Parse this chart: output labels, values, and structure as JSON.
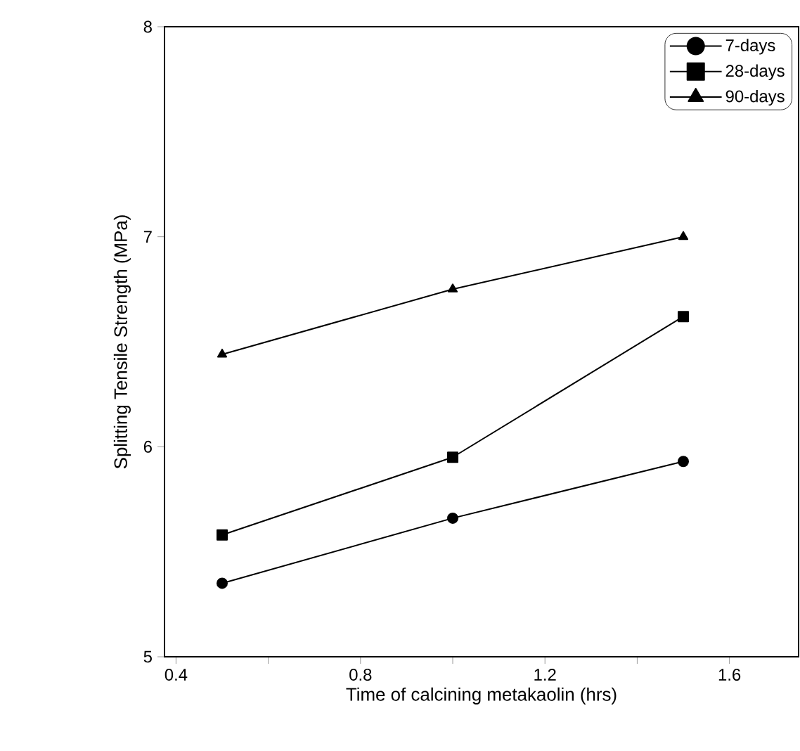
{
  "chart_data": {
    "type": "line",
    "xlabel": "Time of calcining metakaolin (hrs)",
    "ylabel": "Splitting Tensile Strength (MPa)",
    "x": [
      0.5,
      1.0,
      1.5
    ],
    "series": [
      {
        "name": "7-days",
        "color": "#000000",
        "marker": "circle",
        "values": [
          5.35,
          5.66,
          5.93
        ]
      },
      {
        "name": "28-days",
        "color": "#000000",
        "marker": "square",
        "values": [
          5.58,
          5.95,
          6.62
        ]
      },
      {
        "name": "90-days",
        "color": "#000000",
        "marker": "triangle",
        "values": [
          6.44,
          6.75,
          7.0
        ]
      }
    ],
    "xlim": [
      0.375,
      1.75
    ],
    "ylim": [
      5,
      8
    ],
    "xticks": [
      0.4,
      {
        "value": 0.6,
        "label": null
      },
      0.8,
      {
        "value": 1.0,
        "label": null
      },
      1.2,
      {
        "value": 1.4,
        "label": null
      },
      1.6
    ],
    "yticks": [
      5,
      6,
      7,
      8
    ],
    "legend": "top right",
    "grid": false,
    "line_style": "solid"
  }
}
